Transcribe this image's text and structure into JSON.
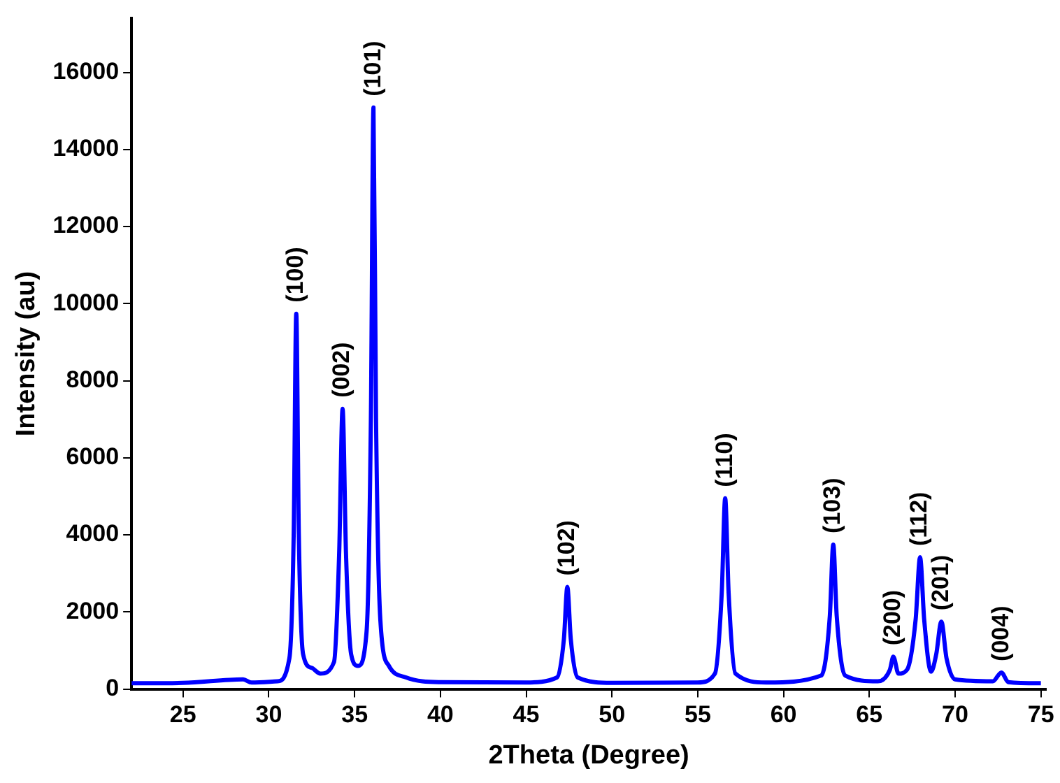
{
  "chart_data": {
    "type": "line",
    "xlabel": "2Theta (Degree)",
    "ylabel": "Intensity (au)",
    "x": [
      22,
      25,
      28.5,
      29,
      30.5,
      31.2,
      31.45,
      31.6,
      31.75,
      32.0,
      32.5,
      33.0,
      33.8,
      34.1,
      34.3,
      34.5,
      34.8,
      35.2,
      35.7,
      35.95,
      36.1,
      36.25,
      36.5,
      37,
      38,
      40,
      45,
      46.8,
      47.2,
      47.4,
      47.6,
      48,
      50,
      55,
      56.0,
      56.4,
      56.6,
      56.8,
      57.2,
      59,
      62.2,
      62.7,
      62.9,
      63.1,
      63.6,
      65.5,
      66.2,
      66.4,
      66.7,
      67.2,
      67.7,
      67.96,
      68.2,
      68.6,
      68.9,
      69.2,
      69.5,
      70,
      72.2,
      72.7,
      73.1,
      75
    ],
    "series": [
      {
        "color": "#0000ff",
        "values": [
          150,
          160,
          250,
          170,
          200,
          800,
          4000,
          9740,
          4000,
          900,
          550,
          400,
          700,
          3500,
          7270,
          3500,
          900,
          600,
          1500,
          7000,
          15090,
          7000,
          1800,
          600,
          300,
          180,
          170,
          300,
          1300,
          2650,
          1300,
          300,
          160,
          170,
          400,
          2500,
          4950,
          2500,
          400,
          170,
          350,
          1900,
          3750,
          1900,
          350,
          200,
          500,
          840,
          400,
          500,
          1800,
          3420,
          1800,
          450,
          900,
          1750,
          800,
          250,
          200,
          430,
          180,
          150
        ]
      }
    ],
    "xlim": [
      22,
      75.3
    ],
    "xticks": [
      25,
      30,
      35,
      40,
      45,
      50,
      55,
      60,
      65,
      70,
      75
    ],
    "ylim": [
      0,
      17400
    ],
    "yticks": [
      0,
      2000,
      4000,
      6000,
      8000,
      10000,
      12000,
      14000,
      16000
    ],
    "grid": false,
    "legend": false,
    "marker": "none",
    "line_style": "solid",
    "annotations": [
      {
        "text": "(100)",
        "x": 31.6,
        "y": 9740
      },
      {
        "text": "(002)",
        "x": 34.3,
        "y": 7270
      },
      {
        "text": "(101)",
        "x": 36.1,
        "y": 15090
      },
      {
        "text": "(102)",
        "x": 47.4,
        "y": 2650
      },
      {
        "text": "(110)",
        "x": 56.6,
        "y": 4950
      },
      {
        "text": "(103)",
        "x": 62.9,
        "y": 3750
      },
      {
        "text": "(200)",
        "x": 66.4,
        "y": 840
      },
      {
        "text": "(112)",
        "x": 67.96,
        "y": 3420
      },
      {
        "text": "(201)",
        "x": 69.2,
        "y": 1750
      },
      {
        "text": "(004)",
        "x": 72.7,
        "y": 430
      }
    ]
  }
}
